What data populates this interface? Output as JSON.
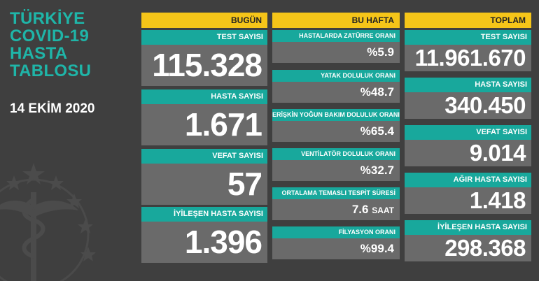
{
  "title_lines": [
    "TÜRKİYE",
    "COVID-19",
    "HASTA",
    "TABLOSU"
  ],
  "date": "14 EKİM 2020",
  "colors": {
    "header": "#f5c519",
    "label_bar": "#18a89c",
    "value_box": "#6a6a6a",
    "background": "#3f3f3f",
    "title": "#1fb5a8"
  },
  "icons": [
    "ministry-emblem-icon"
  ],
  "today": {
    "header": "BUGÜN",
    "stats": [
      {
        "label": "TEST SAYISI",
        "value": "115.328"
      },
      {
        "label": "HASTA SAYISI",
        "value": "1.671"
      },
      {
        "label": "VEFAT SAYISI",
        "value": "57"
      },
      {
        "label": "İYİLEŞEN HASTA SAYISI",
        "value": "1.396"
      }
    ]
  },
  "week": {
    "header": "BU HAFTA",
    "stats": [
      {
        "label": "HASTALARDA ZATÜRRE ORANI",
        "value": "%5.9",
        "unit": ""
      },
      {
        "label": "YATAK DOLULUK ORANI",
        "value": "%48.7",
        "unit": ""
      },
      {
        "label": "ERİŞKİN YOĞUN BAKIM DOLULUK ORANI",
        "value": "%65.4",
        "unit": ""
      },
      {
        "label": "VENTİLATÖR DOLULUK ORANI",
        "value": "%32.7",
        "unit": ""
      },
      {
        "label": "ORTALAMA TEMASLI TESPİT SÜRESİ",
        "value": "7.6",
        "unit": "SAAT"
      },
      {
        "label": "FİLYASYON ORANI",
        "value": "%99.4",
        "unit": ""
      }
    ]
  },
  "total": {
    "header": "TOPLAM",
    "stats": [
      {
        "label": "TEST SAYISI",
        "value": "11.961.670"
      },
      {
        "label": "HASTA SAYISI",
        "value": "340.450"
      },
      {
        "label": "VEFAT SAYISI",
        "value": "9.014"
      },
      {
        "label": "AĞIR HASTA SAYISI",
        "value": "1.418"
      },
      {
        "label": "İYİLEŞEN HASTA SAYISI",
        "value": "298.368"
      }
    ]
  }
}
